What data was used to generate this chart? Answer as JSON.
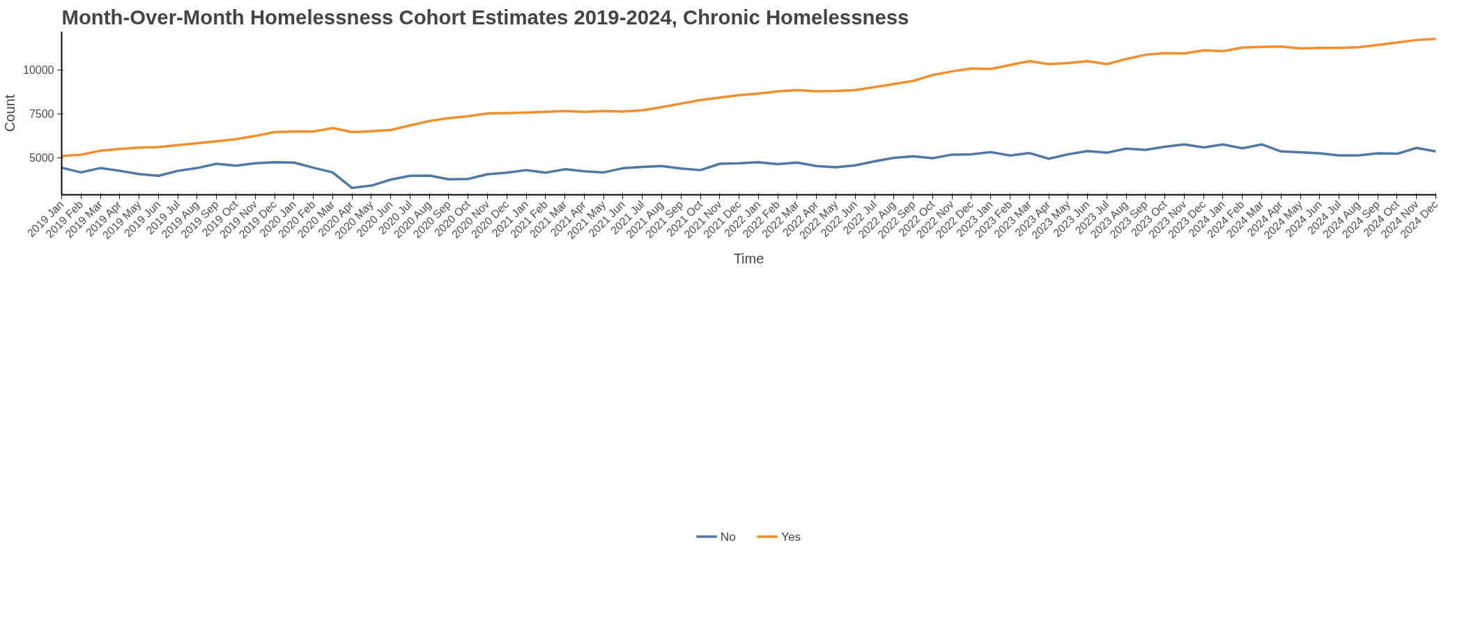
{
  "chart_data": {
    "type": "line",
    "title": "Month-Over-Month Homelessness Cohort Estimates 2019-2024, Chronic Homelessness",
    "xlabel": "Time",
    "ylabel": "Count",
    "categories": [
      "2019 Jan",
      "2019 Feb",
      "2019 Mar",
      "2019 Apr",
      "2019 May",
      "2019 Jun",
      "2019 Jul",
      "2019 Aug",
      "2019 Sep",
      "2019 Oct",
      "2019 Nov",
      "2019 Dec",
      "2020 Jan",
      "2020 Feb",
      "2020 Mar",
      "2020 Apr",
      "2020 May",
      "2020 Jun",
      "2020 Jul",
      "2020 Aug",
      "2020 Sep",
      "2020 Oct",
      "2020 Nov",
      "2020 Dec",
      "2021 Jan",
      "2021 Feb",
      "2021 Mar",
      "2021 Apr",
      "2021 May",
      "2021 Jun",
      "2021 Jul",
      "2021 Aug",
      "2021 Sep",
      "2021 Oct",
      "2021 Nov",
      "2021 Dec",
      "2022 Jan",
      "2022 Feb",
      "2022 Mar",
      "2022 Apr",
      "2022 May",
      "2022 Jun",
      "2022 Jul",
      "2022 Aug",
      "2022 Sep",
      "2022 Oct",
      "2022 Nov",
      "2022 Dec",
      "2023 Jan",
      "2023 Feb",
      "2023 Mar",
      "2023 Apr",
      "2023 May",
      "2023 Jun",
      "2023 Jul",
      "2023 Aug",
      "2023 Sep",
      "2023 Oct",
      "2023 Nov",
      "2023 Dec",
      "2024 Jan",
      "2024 Feb",
      "2024 Mar",
      "2024 Apr",
      "2024 May",
      "2024 Jun",
      "2024 Jul",
      "2024 Aug",
      "2024 Sep",
      "2024 Oct",
      "2024 Nov",
      "2024 Dec"
    ],
    "series": [
      {
        "name": "No",
        "color": "#4e79a7",
        "values": [
          4440,
          4170,
          4420,
          4260,
          4080,
          3980,
          4260,
          4420,
          4660,
          4550,
          4690,
          4750,
          4730,
          4440,
          4170,
          3290,
          3420,
          3760,
          3980,
          3990,
          3780,
          3800,
          4070,
          4160,
          4300,
          4160,
          4350,
          4240,
          4170,
          4410,
          4480,
          4530,
          4390,
          4300,
          4660,
          4690,
          4750,
          4640,
          4730,
          4530,
          4460,
          4570,
          4800,
          5000,
          5090,
          4980,
          5180,
          5200,
          5320,
          5130,
          5270,
          4950,
          5200,
          5380,
          5290,
          5520,
          5450,
          5630,
          5760,
          5590,
          5760,
          5540,
          5760,
          5360,
          5310,
          5250,
          5140,
          5140,
          5250,
          5230,
          5560,
          5360
        ]
      },
      {
        "name": "Yes",
        "color": "#f28e2b",
        "values": [
          5110,
          5180,
          5400,
          5500,
          5580,
          5610,
          5720,
          5830,
          5940,
          6060,
          6240,
          6460,
          6490,
          6490,
          6690,
          6460,
          6510,
          6580,
          6840,
          7090,
          7250,
          7360,
          7520,
          7540,
          7570,
          7610,
          7660,
          7610,
          7660,
          7630,
          7700,
          7880,
          8080,
          8280,
          8420,
          8560,
          8650,
          8780,
          8850,
          8780,
          8800,
          8850,
          9010,
          9190,
          9370,
          9700,
          9910,
          10070,
          10040,
          10270,
          10490,
          10320,
          10380,
          10490,
          10320,
          10610,
          10850,
          10940,
          10920,
          11100,
          11050,
          11260,
          11300,
          11320,
          11210,
          11240,
          11240,
          11280,
          11410,
          11550,
          11690,
          11750
        ]
      }
    ],
    "ylim": [
      2900,
      12160
    ],
    "yticks": [
      5000,
      7500,
      10000
    ],
    "grid": false,
    "legend": "bottom",
    "line_style": "solid",
    "marker": "none"
  }
}
